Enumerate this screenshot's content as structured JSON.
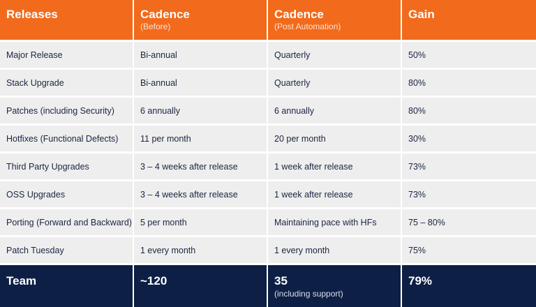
{
  "header": [
    {
      "title": "Releases",
      "sub": ""
    },
    {
      "title": "Cadence",
      "sub": "(Before)"
    },
    {
      "title": "Cadence",
      "sub": "(Post Automation)"
    },
    {
      "title": "Gain",
      "sub": ""
    }
  ],
  "rows": [
    [
      "Major Release",
      "Bi-annual",
      "Quarterly",
      "50%"
    ],
    [
      "Stack Upgrade",
      "Bi-annual",
      "Quarterly",
      "80%"
    ],
    [
      "Patches (including Security)",
      "6 annually",
      "6 annually",
      "80%"
    ],
    [
      "Hotfixes (Functional Defects)",
      "11 per month",
      "20 per month",
      "30%"
    ],
    [
      "Third Party Upgrades",
      "3 – 4 weeks after release",
      "1 week after release",
      "73%"
    ],
    [
      "OSS Upgrades",
      "3 – 4 weeks after release",
      "1 week after release",
      "73%"
    ],
    [
      "Porting (Forward and Backward)",
      "5 per month",
      "Maintaining pace with HFs",
      "75 – 80%"
    ],
    [
      "Patch Tuesday",
      "1 every month",
      "1 every month",
      "75%"
    ]
  ],
  "footer": [
    {
      "title": "Team",
      "sub": ""
    },
    {
      "title": "~120",
      "sub": ""
    },
    {
      "title": "35",
      "sub": "(including support)"
    },
    {
      "title": "79%",
      "sub": ""
    }
  ],
  "colors": {
    "header_bg": "#f26a1b",
    "row_bg": "#eeeeee",
    "footer_bg": "#0d1f45",
    "text_dark": "#1a2541"
  }
}
